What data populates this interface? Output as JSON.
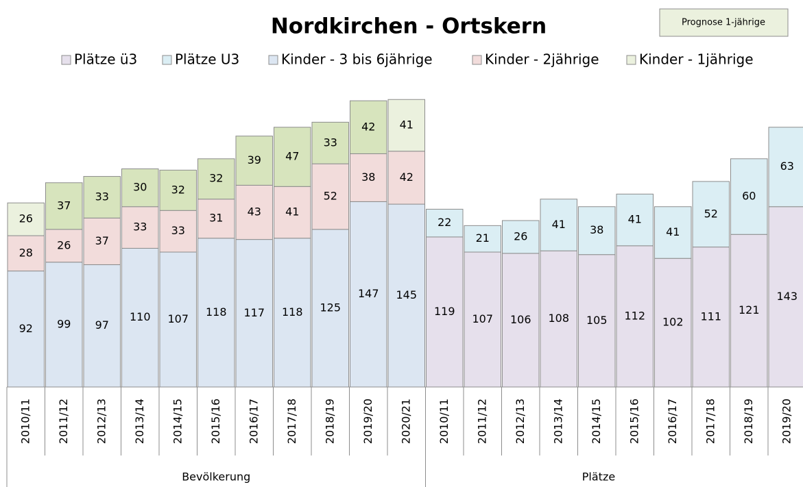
{
  "chart_data": {
    "type": "stacked_bar",
    "title": "Nordkirchen - Ortskern",
    "annotation": "Prognose 1-jährige",
    "groups": [
      {
        "name": "Bevölkerung",
        "categories": [
          "2010/11",
          "2011/12",
          "2012/13",
          "2013/14",
          "2014/15",
          "2015/16",
          "2016/17",
          "2017/18",
          "2018/19",
          "2019/20",
          "2020/21"
        ]
      },
      {
        "name": "Plätze",
        "categories": [
          "2010/11",
          "2011/12",
          "2012/13",
          "2013/14",
          "2014/15",
          "2015/16",
          "2016/17",
          "2017/18",
          "2018/19",
          "2019/20"
        ]
      }
    ],
    "series": [
      {
        "name": "Plätze ü3",
        "color": "#e6e0ec",
        "values": [
          null,
          null,
          null,
          null,
          null,
          null,
          null,
          null,
          null,
          null,
          null,
          119,
          107,
          106,
          108,
          105,
          112,
          102,
          111,
          121,
          143
        ]
      },
      {
        "name": "Plätze U3",
        "color": "#dbeef4",
        "values": [
          null,
          null,
          null,
          null,
          null,
          null,
          null,
          null,
          null,
          null,
          null,
          22,
          21,
          26,
          41,
          38,
          41,
          41,
          52,
          60,
          63
        ]
      },
      {
        "name": "Kinder - 3 bis 6jährige",
        "color": "#dce6f2",
        "values": [
          92,
          99,
          97,
          110,
          107,
          118,
          117,
          118,
          125,
          147,
          145,
          null,
          null,
          null,
          null,
          null,
          null,
          null,
          null,
          null,
          null
        ]
      },
      {
        "name": "Kinder - 2jährige",
        "color": "#f2dcdb",
        "values": [
          28,
          26,
          37,
          33,
          33,
          31,
          43,
          41,
          52,
          38,
          42,
          null,
          null,
          null,
          null,
          null,
          null,
          null,
          null,
          null,
          null
        ]
      },
      {
        "name": "Kinder - 1jährige",
        "color": "#ebf1de",
        "colors": [
          "#ebf1de",
          "#d7e4bd",
          "#d7e4bd",
          "#d7e4bd",
          "#d7e4bd",
          "#d7e4bd",
          "#d7e4bd",
          "#d7e4bd",
          "#d7e4bd",
          "#d7e4bd",
          "#ebf1de",
          null,
          null,
          null,
          null,
          null,
          null,
          null,
          null,
          null,
          null
        ],
        "values": [
          26,
          37,
          33,
          30,
          32,
          32,
          39,
          47,
          33,
          42,
          41,
          null,
          null,
          null,
          null,
          null,
          null,
          null,
          null,
          null,
          null
        ]
      }
    ],
    "ylim": [
      0,
      250
    ]
  }
}
